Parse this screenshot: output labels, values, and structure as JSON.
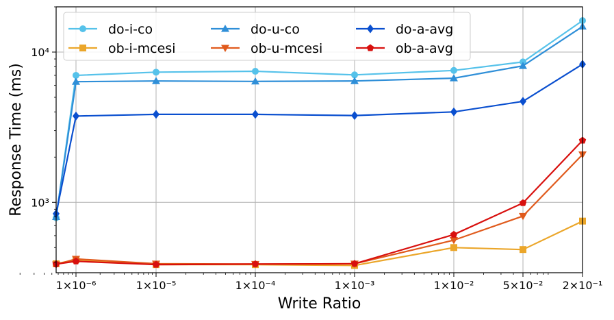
{
  "chart_data": {
    "type": "line",
    "xlabel": "Write Ratio",
    "ylabel": "Response Time (ms)",
    "x_scale": "log",
    "y_scale": "log",
    "x": [
      1e-07,
      1e-06,
      1e-05,
      0.0001,
      0.001,
      0.01,
      0.05,
      0.2
    ],
    "x_tick_labels": [
      "1×10⁻⁶",
      "1×10⁻⁵",
      "1×10⁻⁴",
      "1×10⁻³",
      "1×10⁻²",
      "5×10⁻²",
      "2×10⁻¹"
    ],
    "x_tick_values": [
      1e-06,
      1e-05,
      0.0001,
      0.001,
      0.01,
      0.05,
      0.2
    ],
    "y_tick_labels": [
      "10³",
      "10⁴"
    ],
    "y_tick_values": [
      1000,
      10000
    ],
    "ylim": [
      340,
      20000
    ],
    "grid": true,
    "legend_position": "top",
    "series": [
      {
        "name": "do-i-co",
        "color": "#56c2ea",
        "marker": "circle",
        "values": [
          790,
          7000,
          7350,
          7450,
          7050,
          7550,
          8600,
          16200
        ]
      },
      {
        "name": "do-u-co",
        "color": "#2f8fd8",
        "marker": "triangle-up",
        "values": [
          800,
          6350,
          6420,
          6380,
          6420,
          6700,
          8100,
          14800
        ]
      },
      {
        "name": "do-a-avg",
        "color": "#0a4fcf",
        "marker": "diamond",
        "values": [
          840,
          3750,
          3850,
          3850,
          3780,
          4000,
          4700,
          8300
        ]
      },
      {
        "name": "ob-i-mcesi",
        "color": "#eba62a",
        "marker": "square",
        "values": [
          390,
          415,
          385,
          385,
          380,
          500,
          485,
          750
        ]
      },
      {
        "name": "ob-u-mcesi",
        "color": "#e05a1c",
        "marker": "triangle-down",
        "values": [
          385,
          420,
          390,
          388,
          390,
          560,
          810,
          2080
        ]
      },
      {
        "name": "ob-a-avg",
        "color": "#d8100e",
        "marker": "pentagon",
        "values": [
          388,
          405,
          385,
          388,
          390,
          610,
          990,
          2580
        ]
      }
    ]
  }
}
